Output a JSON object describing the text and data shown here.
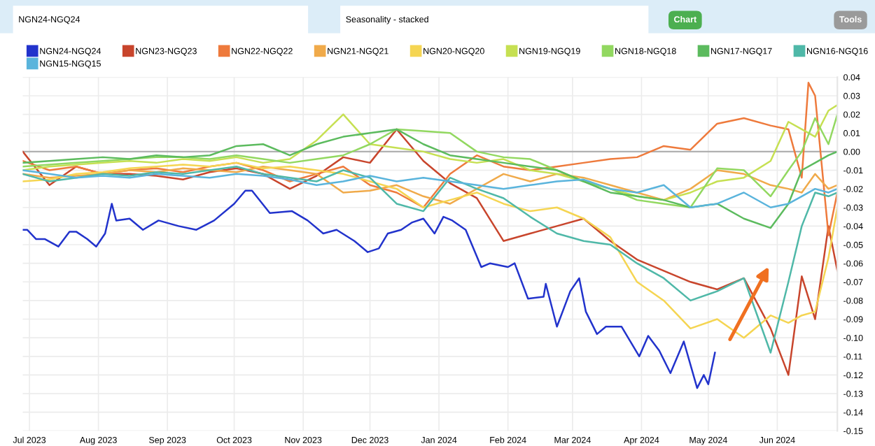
{
  "chart_data": {
    "type": "line",
    "annotations": [
      "NGN24-NGQ24",
      "Seasonality - stacked",
      "Chart",
      "Tools"
    ],
    "xlim": [
      "2023-06-28",
      "2024-06-28"
    ],
    "xticks": [
      {
        "value": "2023-07-01",
        "label": "Jul 2023"
      },
      {
        "value": "2023-08-01",
        "label": "Aug 2023"
      },
      {
        "value": "2023-09-01",
        "label": "Sep 2023"
      },
      {
        "value": "2023-10-01",
        "label": "Oct 2023"
      },
      {
        "value": "2023-11-01",
        "label": "Nov 2023"
      },
      {
        "value": "2023-12-01",
        "label": "Dec 2023"
      },
      {
        "value": "2024-01-01",
        "label": "Jan 2024"
      },
      {
        "value": "2024-02-01",
        "label": "Feb 2024"
      },
      {
        "value": "2024-03-01",
        "label": "Mar 2024"
      },
      {
        "value": "2024-04-01",
        "label": "Apr 2024"
      },
      {
        "value": "2024-05-01",
        "label": "May 2024"
      },
      {
        "value": "2024-06-01",
        "label": "Jun 2024"
      }
    ],
    "ylim": [
      -0.15,
      0.04
    ],
    "yticks": [
      {
        "value": 0.04,
        "label": "0.04"
      },
      {
        "value": 0.03,
        "label": "0.03"
      },
      {
        "value": 0.02,
        "label": "0.02"
      },
      {
        "value": 0.01,
        "label": "0.01"
      },
      {
        "value": 0,
        "label": "0.00"
      },
      {
        "value": -0.01,
        "label": "-0.01"
      },
      {
        "value": -0.02,
        "label": "-0.02"
      },
      {
        "value": -0.03,
        "label": "-0.03"
      },
      {
        "value": -0.04,
        "label": "-0.04"
      },
      {
        "value": -0.05,
        "label": "-0.05"
      },
      {
        "value": -0.06,
        "label": "-0.06"
      },
      {
        "value": -0.07,
        "label": "-0.07"
      },
      {
        "value": -0.08,
        "label": "-0.08"
      },
      {
        "value": -0.09,
        "label": "-0.09"
      },
      {
        "value": -0.1,
        "label": "-0.10"
      },
      {
        "value": -0.11,
        "label": "-0.11"
      },
      {
        "value": -0.12,
        "label": "-0.12"
      },
      {
        "value": -0.13,
        "label": "-0.13"
      },
      {
        "value": -0.14,
        "label": "-0.14"
      },
      {
        "value": -0.15,
        "label": "-0.15"
      }
    ],
    "grid": true,
    "legend": "top",
    "marker": "none",
    "line_style": "solid",
    "ref_lines": [
      {
        "axis": "y",
        "value": 0,
        "color": "#b0b0b0"
      }
    ],
    "x": [
      "2023-06-28",
      "2023-07-10",
      "2023-07-22",
      "2023-08-03",
      "2023-08-15",
      "2023-08-27",
      "2023-09-08",
      "2023-09-20",
      "2023-10-02",
      "2023-10-14",
      "2023-10-26",
      "2023-11-07",
      "2023-11-19",
      "2023-12-01",
      "2023-12-13",
      "2023-12-25",
      "2024-01-06",
      "2024-01-18",
      "2024-01-30",
      "2024-02-11",
      "2024-02-23",
      "2024-03-06",
      "2024-03-18",
      "2024-03-30",
      "2024-04-11",
      "2024-04-23",
      "2024-05-05",
      "2024-05-17",
      "2024-05-29",
      "2024-06-06",
      "2024-06-12",
      "2024-06-18",
      "2024-06-24",
      "2024-06-28"
    ],
    "series": [
      {
        "name": "NGN24-NGQ24",
        "color": "#2233cc",
        "x": [
          "2023-06-28",
          "2023-06-30",
          "2023-07-04",
          "2023-07-08",
          "2023-07-14",
          "2023-07-19",
          "2023-07-22",
          "2023-07-27",
          "2023-07-31",
          "2023-08-04",
          "2023-08-07",
          "2023-08-09",
          "2023-08-15",
          "2023-08-21",
          "2023-08-28",
          "2023-09-06",
          "2023-09-14",
          "2023-09-22",
          "2023-10-01",
          "2023-10-06",
          "2023-10-09",
          "2023-10-17",
          "2023-10-27",
          "2023-11-03",
          "2023-11-10",
          "2023-11-16",
          "2023-11-24",
          "2023-11-30",
          "2023-12-05",
          "2023-12-09",
          "2023-12-15",
          "2023-12-20",
          "2023-12-25",
          "2023-12-30",
          "2024-01-03",
          "2024-01-07",
          "2024-01-13",
          "2024-01-20",
          "2024-01-24",
          "2024-02-01",
          "2024-02-04",
          "2024-02-10",
          "2024-02-17",
          "2024-02-18",
          "2024-02-23",
          "2024-02-29",
          "2024-03-04",
          "2024-03-07",
          "2024-03-12",
          "2024-03-16",
          "2024-03-23",
          "2024-03-31",
          "2024-04-04",
          "2024-04-09",
          "2024-04-14",
          "2024-04-20",
          "2024-04-26",
          "2024-04-29",
          "2024-05-01",
          "2024-05-04"
        ],
        "values": [
          -0.042,
          -0.042,
          -0.047,
          -0.047,
          -0.051,
          -0.043,
          -0.043,
          -0.047,
          -0.051,
          -0.044,
          -0.028,
          -0.037,
          -0.036,
          -0.042,
          -0.037,
          -0.04,
          -0.042,
          -0.037,
          -0.028,
          -0.021,
          -0.021,
          -0.033,
          -0.032,
          -0.037,
          -0.044,
          -0.042,
          -0.048,
          -0.054,
          -0.052,
          -0.044,
          -0.042,
          -0.038,
          -0.036,
          -0.044,
          -0.035,
          -0.037,
          -0.042,
          -0.062,
          -0.06,
          -0.062,
          -0.06,
          -0.079,
          -0.078,
          -0.071,
          -0.094,
          -0.075,
          -0.068,
          -0.086,
          -0.098,
          -0.094,
          -0.094,
          -0.11,
          -0.099,
          -0.107,
          -0.119,
          -0.102,
          -0.127,
          -0.12,
          -0.125,
          -0.108
        ]
      },
      {
        "name": "NGN23-NGQ23",
        "color": "#c8452c",
        "values": [
          0.0,
          -0.018,
          -0.008,
          -0.012,
          -0.012,
          -0.013,
          -0.015,
          -0.011,
          -0.009,
          -0.012,
          -0.02,
          -0.013,
          -0.003,
          -0.006,
          0.012,
          -0.005,
          -0.017,
          -0.025,
          -0.048,
          -0.044,
          -0.04,
          -0.036,
          -0.048,
          -0.058,
          -0.064,
          -0.07,
          -0.074,
          -0.068,
          -0.095,
          -0.12,
          -0.067,
          -0.09,
          -0.04,
          -0.064
        ]
      },
      {
        "name": "NGN22-NGQ22",
        "color": "#ee7a3c",
        "x": [
          "2023-06-28",
          "2023-07-10",
          "2023-07-22",
          "2023-08-03",
          "2023-08-15",
          "2023-08-27",
          "2023-09-08",
          "2023-09-20",
          "2023-10-02",
          "2023-10-14",
          "2023-10-26",
          "2023-11-07",
          "2023-11-19",
          "2023-12-01",
          "2023-12-13",
          "2023-12-25",
          "2024-01-06",
          "2024-01-18",
          "2024-01-30",
          "2024-02-11",
          "2024-02-23",
          "2024-03-06",
          "2024-03-18",
          "2024-03-30",
          "2024-04-11",
          "2024-04-23",
          "2024-05-05",
          "2024-05-17",
          "2024-05-29",
          "2024-06-06",
          "2024-06-12",
          "2024-06-15",
          "2024-06-18",
          "2024-06-24",
          "2024-06-28"
        ],
        "values": [
          -0.005,
          -0.01,
          -0.008,
          -0.012,
          -0.01,
          -0.009,
          -0.011,
          -0.008,
          -0.006,
          -0.01,
          -0.016,
          -0.012,
          -0.008,
          -0.018,
          -0.022,
          -0.03,
          -0.012,
          -0.002,
          -0.008,
          -0.01,
          -0.008,
          -0.006,
          -0.004,
          -0.003,
          0.003,
          0.001,
          0.015,
          0.018,
          0.014,
          0.012,
          -0.014,
          0.037,
          0.03,
          -0.045,
          -0.022
        ]
      },
      {
        "name": "NGN21-NGQ21",
        "color": "#f0aa4a",
        "values": [
          -0.012,
          -0.014,
          -0.013,
          -0.012,
          -0.01,
          -0.011,
          -0.009,
          -0.01,
          -0.011,
          -0.008,
          -0.01,
          -0.012,
          -0.022,
          -0.021,
          -0.018,
          -0.024,
          -0.028,
          -0.02,
          -0.012,
          -0.016,
          -0.012,
          -0.014,
          -0.018,
          -0.022,
          -0.026,
          -0.02,
          -0.01,
          -0.012,
          -0.018,
          -0.02,
          -0.022,
          -0.012,
          -0.02,
          -0.018
        ]
      },
      {
        "name": "NGN20-NGQ20",
        "color": "#f5d552",
        "values": [
          -0.016,
          -0.015,
          -0.012,
          -0.011,
          -0.009,
          -0.008,
          -0.007,
          -0.008,
          -0.006,
          -0.009,
          -0.008,
          -0.01,
          -0.012,
          -0.016,
          -0.02,
          -0.03,
          -0.026,
          -0.022,
          -0.028,
          -0.032,
          -0.03,
          -0.036,
          -0.046,
          -0.07,
          -0.08,
          -0.095,
          -0.09,
          -0.1,
          -0.088,
          -0.092,
          -0.088,
          -0.086,
          -0.057,
          -0.03
        ]
      },
      {
        "name": "NGN19-NGQ19",
        "color": "#c6e052",
        "values": [
          -0.01,
          -0.008,
          -0.007,
          -0.006,
          -0.005,
          -0.006,
          -0.004,
          -0.005,
          -0.003,
          -0.006,
          -0.004,
          0.006,
          0.02,
          0.004,
          0.002,
          0.0,
          -0.004,
          -0.006,
          -0.004,
          -0.01,
          -0.012,
          -0.016,
          -0.02,
          -0.024,
          -0.026,
          -0.022,
          -0.016,
          -0.014,
          -0.005,
          0.016,
          0.012,
          0.008,
          0.022,
          0.025
        ]
      },
      {
        "name": "NGN18-NGQ18",
        "color": "#92d860",
        "values": [
          -0.008,
          -0.007,
          -0.006,
          -0.005,
          -0.004,
          -0.003,
          -0.003,
          -0.004,
          -0.002,
          -0.004,
          -0.006,
          -0.004,
          -0.002,
          0.004,
          0.012,
          0.011,
          0.01,
          0.0,
          -0.003,
          -0.004,
          -0.01,
          -0.016,
          -0.02,
          -0.026,
          -0.028,
          -0.03,
          -0.009,
          -0.01,
          -0.024,
          -0.01,
          0.0,
          0.018,
          0.004,
          0.02
        ]
      },
      {
        "name": "NGN17-NGQ17",
        "color": "#5cbb5e",
        "values": [
          -0.006,
          -0.005,
          -0.004,
          -0.003,
          -0.004,
          -0.002,
          -0.003,
          -0.002,
          0.003,
          0.004,
          -0.002,
          0.004,
          0.008,
          0.01,
          0.012,
          0.004,
          -0.002,
          -0.004,
          -0.006,
          -0.008,
          -0.01,
          -0.016,
          -0.022,
          -0.024,
          -0.026,
          -0.03,
          -0.028,
          -0.036,
          -0.041,
          -0.028,
          -0.01,
          -0.006,
          -0.002,
          0.0
        ]
      },
      {
        "name": "NGN16-NGQ16",
        "color": "#4fb8a8",
        "values": [
          -0.012,
          -0.016,
          -0.014,
          -0.012,
          -0.013,
          -0.011,
          -0.012,
          -0.01,
          -0.008,
          -0.012,
          -0.014,
          -0.016,
          -0.01,
          -0.014,
          -0.028,
          -0.032,
          -0.014,
          -0.02,
          -0.025,
          -0.035,
          -0.044,
          -0.048,
          -0.05,
          -0.06,
          -0.068,
          -0.08,
          -0.075,
          -0.068,
          -0.108,
          -0.07,
          -0.04,
          -0.022,
          -0.024,
          -0.022
        ]
      },
      {
        "name": "NGN15-NGQ15",
        "color": "#5ab4dc",
        "values": [
          -0.01,
          -0.012,
          -0.014,
          -0.013,
          -0.014,
          -0.012,
          -0.013,
          -0.014,
          -0.012,
          -0.013,
          -0.015,
          -0.018,
          -0.016,
          -0.013,
          -0.016,
          -0.014,
          -0.016,
          -0.018,
          -0.02,
          -0.018,
          -0.016,
          -0.015,
          -0.02,
          -0.022,
          -0.018,
          -0.03,
          -0.028,
          -0.022,
          -0.03,
          -0.028,
          -0.024,
          -0.02,
          -0.022,
          -0.02
        ]
      }
    ]
  }
}
